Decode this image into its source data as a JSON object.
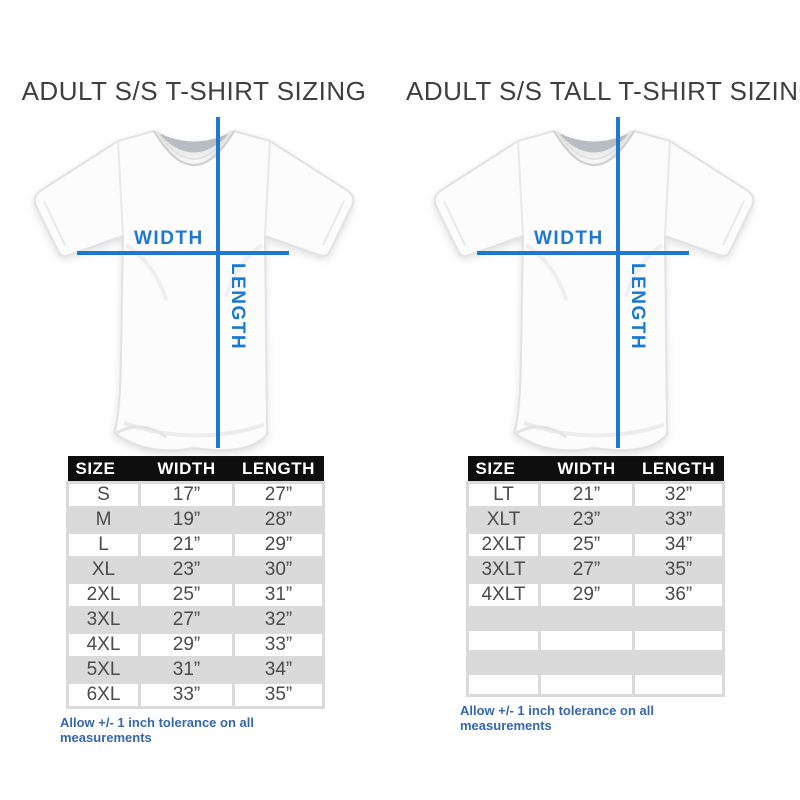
{
  "colors": {
    "accent_blue": "#1e78d2",
    "footnote_blue": "#3566ae",
    "stripe_gray": "#dadada",
    "header_black": "#0e0e0e",
    "title_gray": "#3f3f3f"
  },
  "chart_data": [
    {
      "type": "table",
      "title": "ADULT S/S T-SHIRT SIZING",
      "diagram": {
        "width_label": "WIDTH",
        "length_label": "LENGTH"
      },
      "columns": [
        "SIZE",
        "WIDTH",
        "LENGTH"
      ],
      "rows": [
        [
          "S",
          "17”",
          "27”"
        ],
        [
          "M",
          "19”",
          "28”"
        ],
        [
          "L",
          "21”",
          "29”"
        ],
        [
          "XL",
          "23”",
          "30”"
        ],
        [
          "2XL",
          "25”",
          "31”"
        ],
        [
          "3XL",
          "27”",
          "32”"
        ],
        [
          "4XL",
          "29”",
          "33”"
        ],
        [
          "5XL",
          "31”",
          "34”"
        ],
        [
          "6XL",
          "33”",
          "35”"
        ]
      ],
      "footnote": "Allow +/- 1 inch tolerance on all measurements"
    },
    {
      "type": "table",
      "title": "ADULT S/S TALL T-SHIRT SIZING",
      "diagram": {
        "width_label": "WIDTH",
        "length_label": "LENGTH"
      },
      "columns": [
        "SIZE",
        "WIDTH",
        "LENGTH"
      ],
      "rows": [
        [
          "LT",
          "21”",
          "32”"
        ],
        [
          "XLT",
          "23”",
          "33”"
        ],
        [
          "2XLT",
          "25”",
          "34”"
        ],
        [
          "3XLT",
          "27”",
          "35”"
        ],
        [
          "4XLT",
          "29”",
          "36”"
        ],
        [
          "",
          "",
          ""
        ],
        [
          "",
          "",
          ""
        ],
        [
          "",
          "",
          ""
        ],
        [
          "",
          "",
          ""
        ]
      ],
      "footnote": "Allow +/- 1 inch tolerance on all measurements"
    }
  ]
}
